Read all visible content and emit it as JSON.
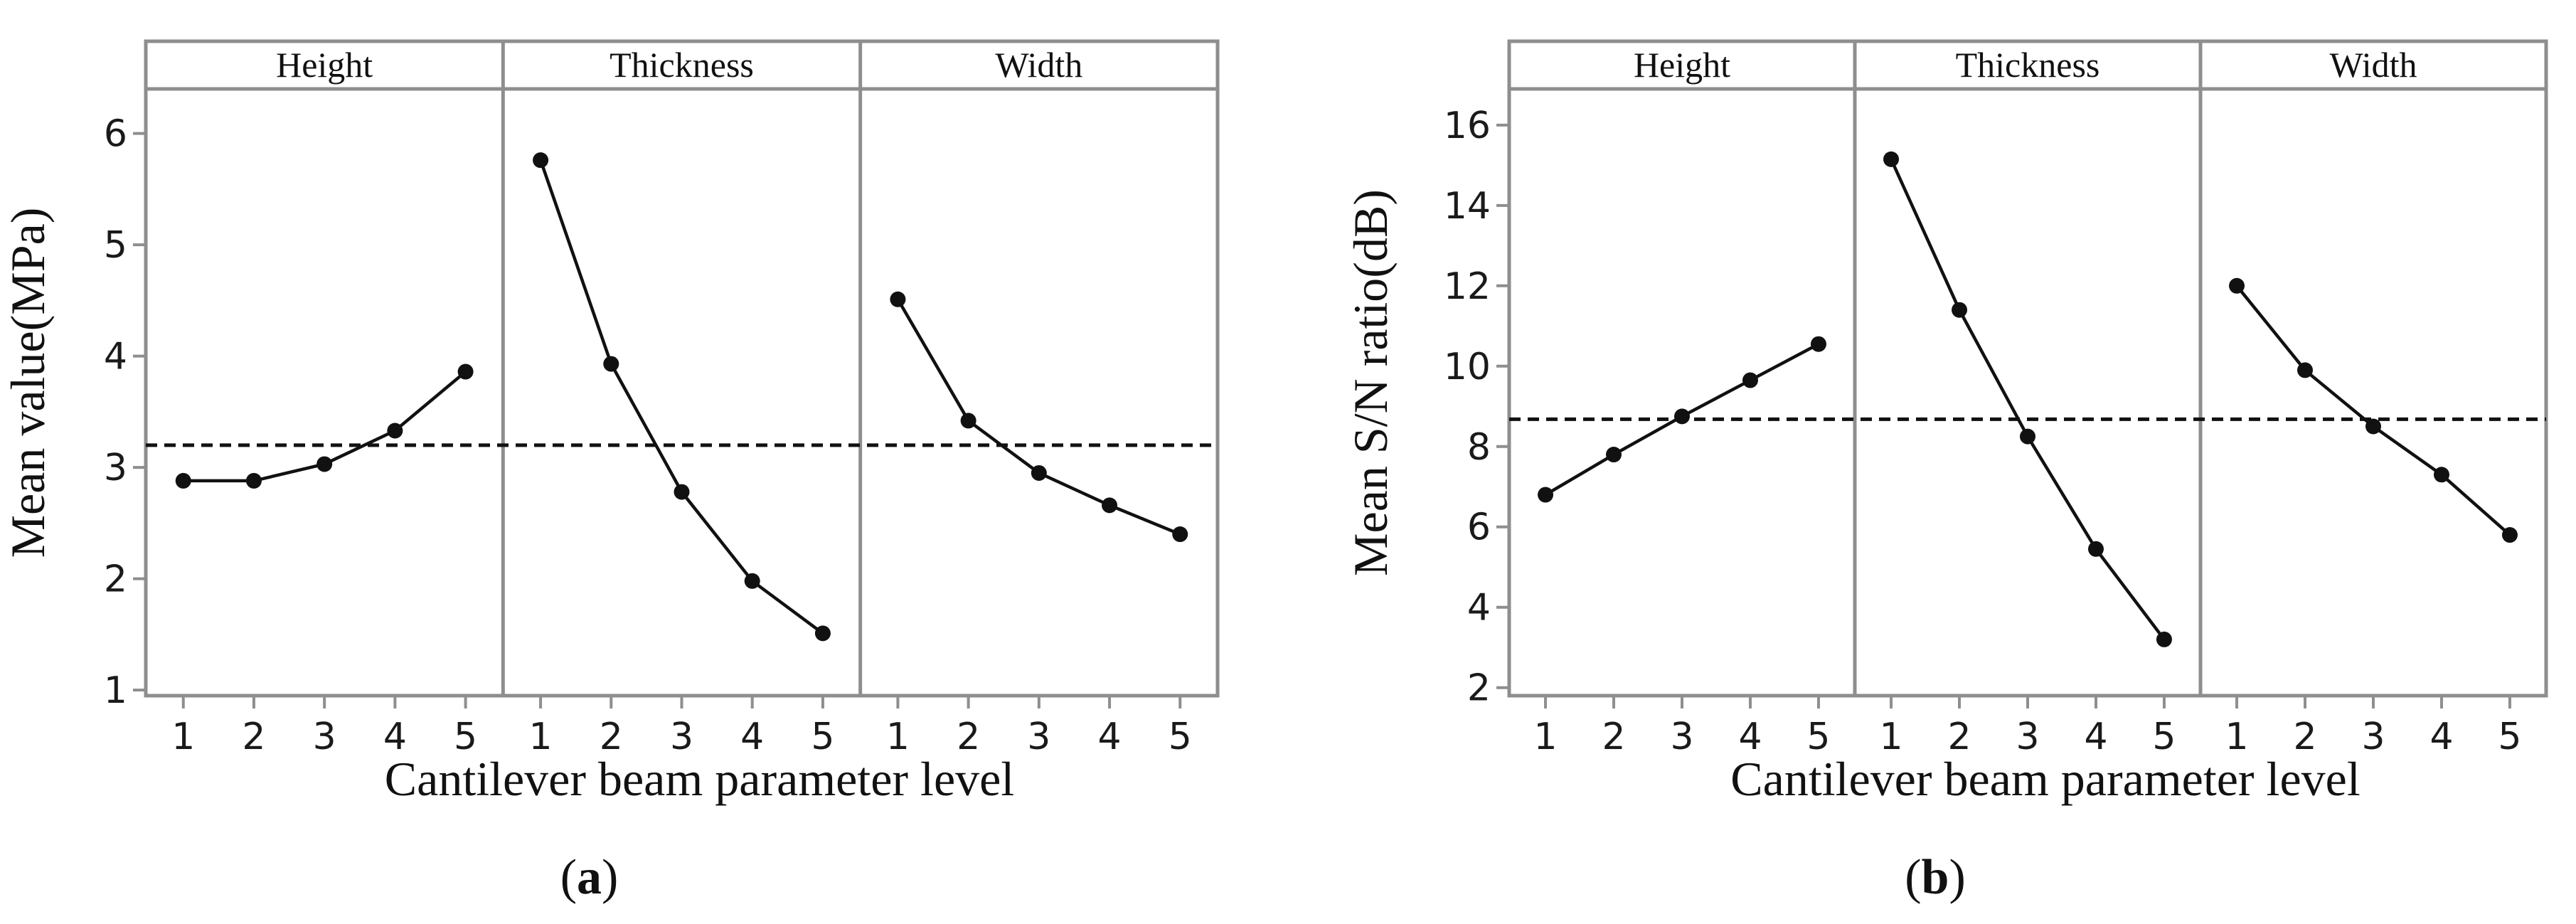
{
  "chart_data": [
    {
      "id": "a",
      "type": "line",
      "subfigure_label": "a",
      "panels": [
        "Height",
        "Thickness",
        "Width"
      ],
      "x_levels": [
        "1",
        "2",
        "3",
        "4",
        "5"
      ],
      "series": [
        {
          "name": "Height",
          "values": [
            2.88,
            2.88,
            3.03,
            3.33,
            3.86
          ]
        },
        {
          "name": "Thickness",
          "values": [
            5.76,
            3.93,
            2.78,
            1.98,
            1.51
          ]
        },
        {
          "name": "Width",
          "values": [
            4.51,
            3.42,
            2.95,
            2.66,
            2.4
          ]
        }
      ],
      "overall_mean": 3.2,
      "ylim": [
        0.95,
        6.4
      ],
      "yticks": [
        1,
        2,
        3,
        4,
        5,
        6
      ],
      "ylabel": "Mean value(MPa)",
      "xlabel": "Cantilever beam parameter level"
    },
    {
      "id": "b",
      "type": "line",
      "subfigure_label": "b",
      "panels": [
        "Height",
        "Thickness",
        "Width"
      ],
      "x_levels": [
        "1",
        "2",
        "3",
        "4",
        "5"
      ],
      "series": [
        {
          "name": "Height",
          "values": [
            6.8,
            7.8,
            8.75,
            9.65,
            10.55
          ]
        },
        {
          "name": "Thickness",
          "values": [
            15.15,
            11.4,
            8.25,
            5.45,
            3.2
          ]
        },
        {
          "name": "Width",
          "values": [
            12.0,
            9.9,
            8.5,
            7.3,
            5.8
          ]
        }
      ],
      "overall_mean": 8.68,
      "ylim": [
        1.8,
        16.9
      ],
      "yticks": [
        2,
        4,
        6,
        8,
        10,
        12,
        14,
        16
      ],
      "ylabel": "Mean S/N ratio(dB)",
      "xlabel": "Cantilever beam parameter level"
    }
  ]
}
